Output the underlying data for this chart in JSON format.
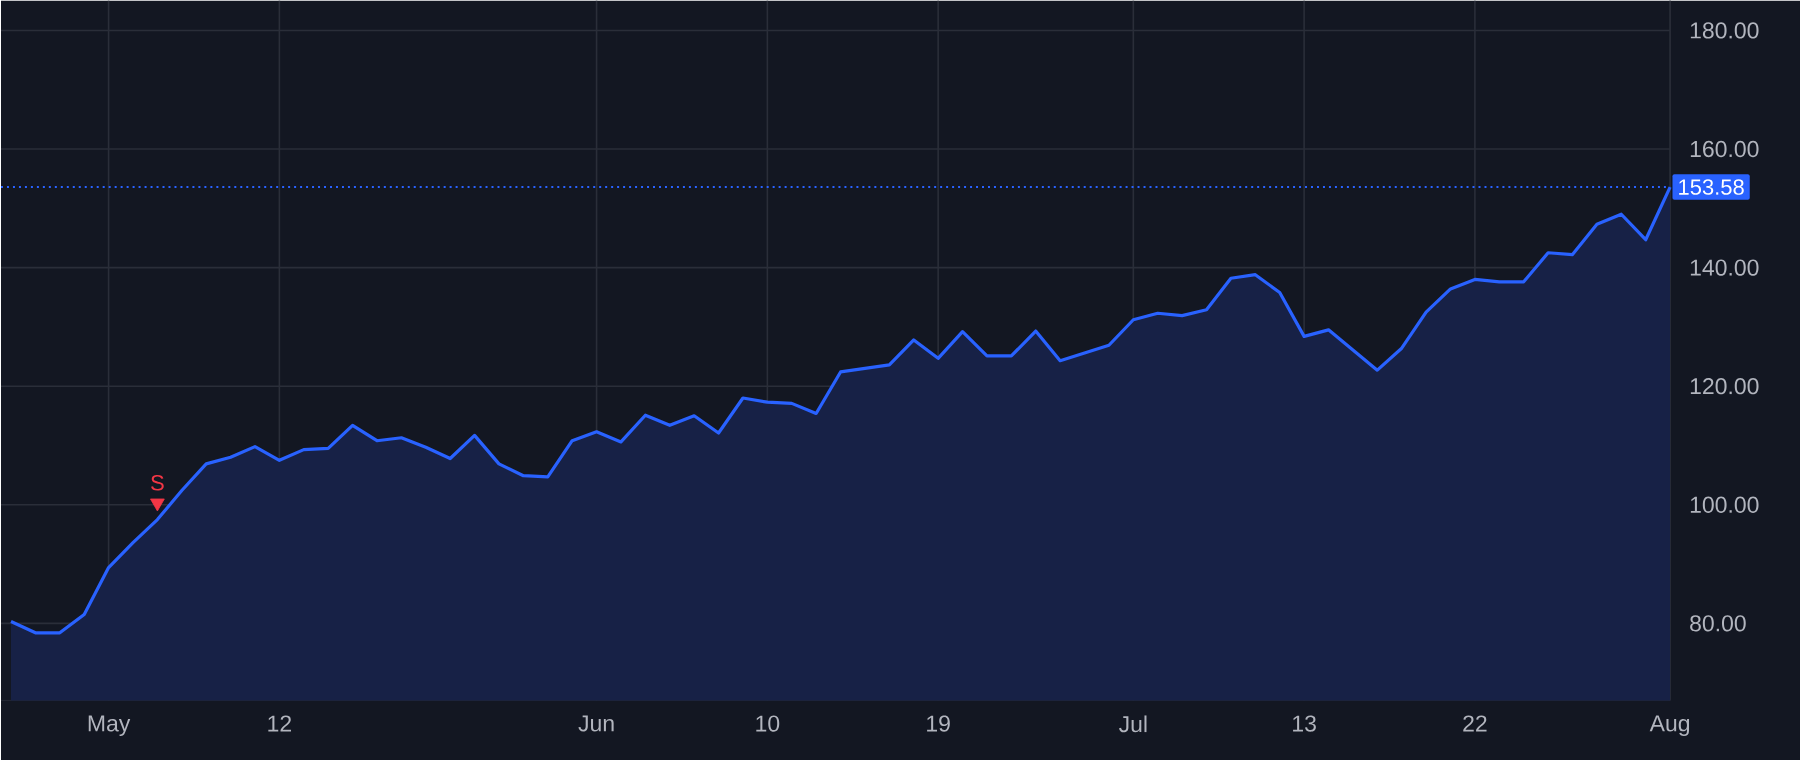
{
  "chart_data": {
    "type": "area",
    "categories": [
      null,
      null,
      null,
      null,
      "May",
      null,
      null,
      null,
      null,
      null,
      null,
      "12",
      null,
      null,
      null,
      null,
      null,
      null,
      null,
      null,
      null,
      null,
      null,
      null,
      "Jun",
      null,
      null,
      null,
      null,
      null,
      null,
      "10",
      null,
      null,
      null,
      null,
      null,
      null,
      "19",
      null,
      null,
      null,
      null,
      null,
      null,
      null,
      "Jul",
      null,
      null,
      null,
      null,
      null,
      null,
      "13",
      null,
      null,
      null,
      null,
      null,
      null,
      "22",
      null,
      null,
      null,
      null,
      null,
      null,
      null,
      "Aug"
    ],
    "series": [
      {
        "color": "#2962ff",
        "values": [
          80.3,
          78.4,
          78.4,
          81.5,
          89.4,
          93.6,
          97.5,
          102.4,
          106.9,
          108.0,
          109.8,
          107.5,
          109.3,
          109.5,
          113.4,
          110.8,
          111.3,
          109.7,
          107.8,
          111.7,
          106.9,
          104.9,
          104.7,
          110.8,
          112.3,
          110.6,
          115.1,
          113.4,
          115.0,
          112.1,
          118.0,
          117.3,
          117.1,
          115.4,
          122.4,
          123.0,
          123.6,
          127.8,
          124.7,
          129.2,
          125.1,
          125.1,
          129.3,
          124.3,
          125.6,
          126.9,
          131.2,
          132.3,
          131.9,
          132.9,
          138.2,
          138.8,
          135.8,
          128.4,
          129.5,
          126.1,
          122.7,
          126.4,
          132.5,
          136.4,
          138.0,
          137.6,
          137.6,
          142.5,
          142.2,
          147.3,
          149.0,
          144.7,
          153.58
        ]
      },
      {
        "type": "scatter",
        "name": "S",
        "color": "#f23645",
        "marker": "triangle",
        "values": [
          null,
          null,
          null,
          null,
          null,
          null,
          100.3,
          null,
          null,
          null,
          null,
          null,
          null,
          null,
          null,
          null,
          null,
          null,
          null,
          null,
          null,
          null,
          null,
          null,
          null,
          null,
          null,
          null,
          null,
          null,
          null,
          null,
          null,
          null,
          null,
          null,
          null,
          null,
          null,
          null,
          null,
          null,
          null,
          null,
          null,
          null,
          null,
          null,
          null,
          null,
          null,
          null,
          null,
          null,
          null,
          null,
          null,
          null,
          null,
          null,
          null,
          null,
          null,
          null,
          null,
          null,
          null,
          null,
          null
        ]
      }
    ],
    "ylim": [
      67,
      185
    ],
    "yticks": [
      {
        "value": 80,
        "label": "80.00"
      },
      {
        "value": 100,
        "label": "100.00"
      },
      {
        "value": 120,
        "label": "120.00"
      },
      {
        "value": 140,
        "label": "140.00"
      },
      {
        "value": 160,
        "label": "160.00"
      },
      {
        "value": 180,
        "label": "180.00"
      }
    ],
    "ref_lines": [
      {
        "axis": "y",
        "value": 153.58,
        "label": "153.58",
        "color": "#2962ff",
        "line_style": "dotted"
      }
    ],
    "grid": true
  }
}
